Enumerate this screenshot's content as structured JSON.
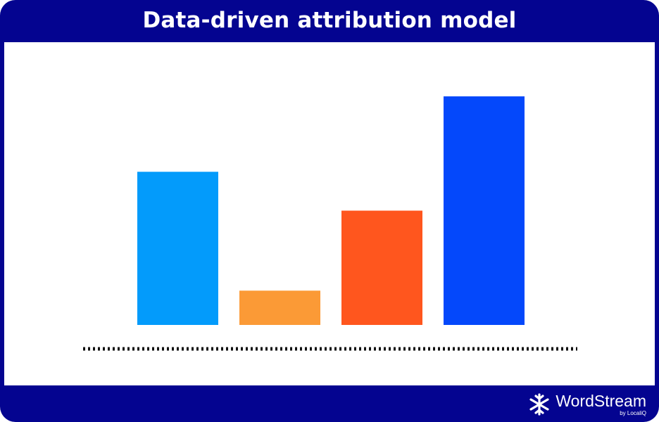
{
  "header": {
    "title": "Data-driven attribution model"
  },
  "brand": {
    "name": "WordStream",
    "tagline": "by LocaliQ",
    "icon": "snowflake-icon"
  },
  "chart_data": {
    "type": "bar",
    "categories": [
      "",
      "",
      "",
      ""
    ],
    "values": [
      67,
      15,
      50,
      100
    ],
    "colors": [
      "#039BFB",
      "#FB9A36",
      "#FF561E",
      "#0448FB"
    ],
    "ylim": [
      0,
      100
    ],
    "grid": false,
    "baseline_style": "dotted",
    "title": "",
    "xlabel": "",
    "ylabel": ""
  }
}
